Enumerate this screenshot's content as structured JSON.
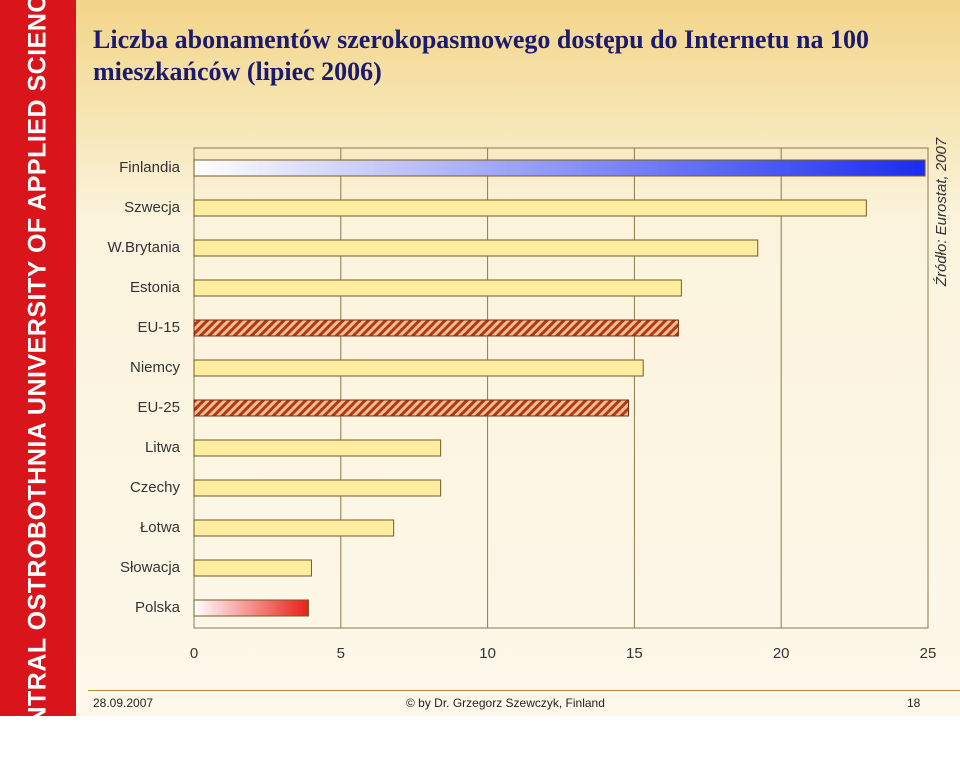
{
  "slide": {
    "sidebar": "CENTRAL OSTROBOTHNIA UNIVERSITY OF APPLIED SCIENCES",
    "date": "28.09.2007",
    "author": "© by Dr. Grzegorz Szewczyk, Finland",
    "page": "18"
  },
  "chart_data": {
    "type": "bar",
    "orientation": "horizontal",
    "title": "Liczba abonamentów szerokopasmowego dostępu do Internetu na 100 mieszkańców (lipiec 2006)",
    "source": "Źródło: Eurostat, 2007",
    "categories": [
      "Finlandia",
      "Szwecja",
      "W.Brytania",
      "Estonia",
      "EU-15",
      "Niemcy",
      "EU-25",
      "Litwa",
      "Czechy",
      "Łotwa",
      "Słowacja",
      "Polska"
    ],
    "values": [
      24.9,
      22.9,
      19.2,
      16.6,
      16.5,
      15.3,
      14.8,
      8.4,
      8.4,
      6.8,
      4.0,
      3.9
    ],
    "colors": [
      "#1a2cf0",
      "#ffeea0",
      "#ffeea0",
      "#ffeea0",
      "#c8451a",
      "#ffeea0",
      "#c8451a",
      "#ffeea0",
      "#ffeea0",
      "#ffeea0",
      "#ffeea0",
      "#e8201a"
    ],
    "fills": [
      "gradient",
      "solid",
      "solid",
      "solid",
      "hatch",
      "solid",
      "hatch",
      "solid",
      "solid",
      "solid",
      "solid",
      "gradient"
    ],
    "xlim": [
      0,
      25
    ],
    "xticks": [
      0,
      5,
      10,
      15,
      20,
      25
    ],
    "grid": true
  }
}
